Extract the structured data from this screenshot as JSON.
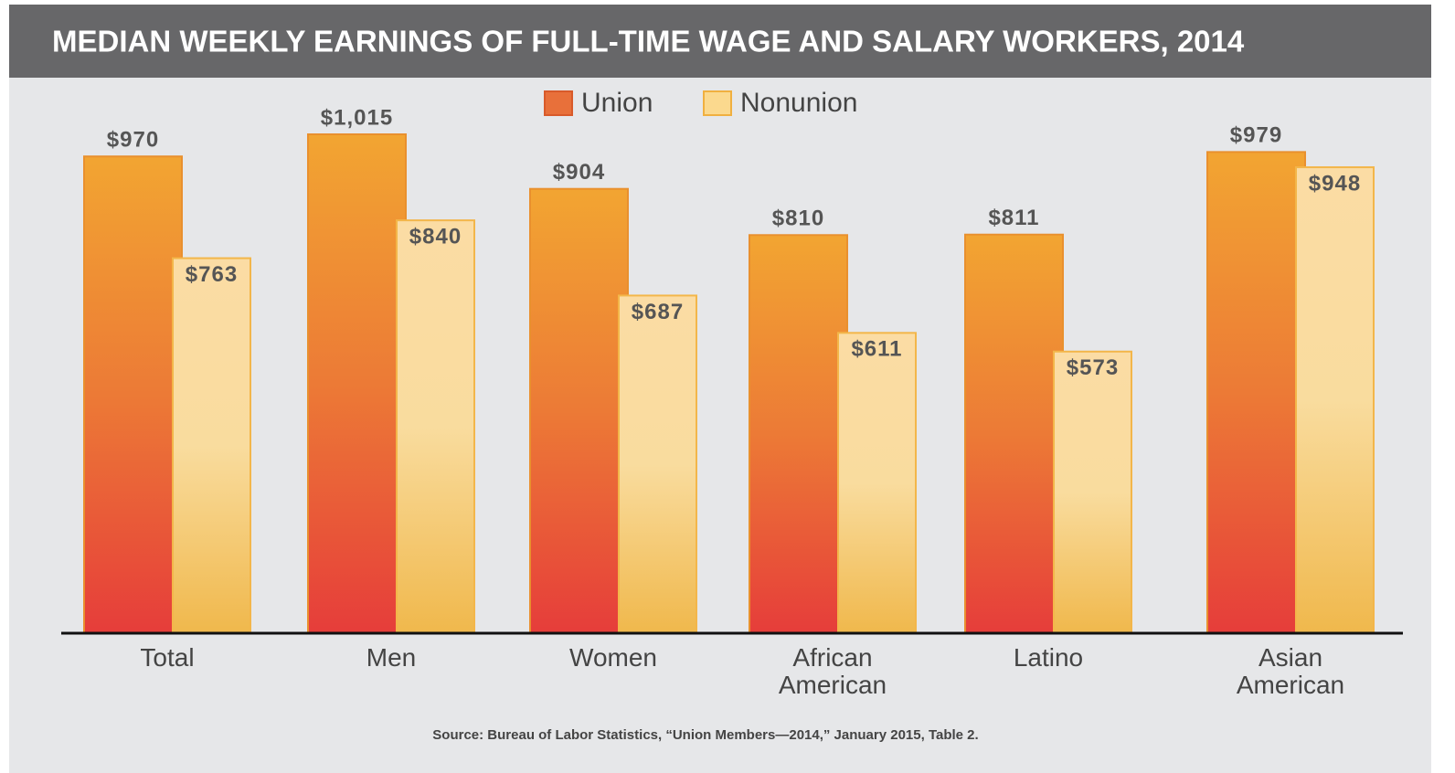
{
  "chart_data": {
    "type": "bar",
    "title": "MEDIAN WEEKLY EARNINGS OF FULL-TIME WAGE AND SALARY WORKERS, 2014",
    "categories": [
      "Total",
      "Men",
      "Women",
      "African American",
      "Latino",
      "Asian American"
    ],
    "series": [
      {
        "name": "Union",
        "color": "#e8703a",
        "values": [
          970,
          1015,
          904,
          810,
          811,
          979
        ],
        "value_labels": [
          "$970",
          "$1,015",
          "$904",
          "$810",
          "$811",
          "$979"
        ]
      },
      {
        "name": "Nonunion",
        "color": "#fbd98e",
        "values": [
          763,
          840,
          687,
          611,
          573,
          948
        ],
        "value_labels": [
          "$763",
          "$840",
          "$687",
          "$611",
          "$573",
          "$948"
        ]
      }
    ],
    "source": "Source: Bureau of Labor Statistics, “Union Members—2014,” January 2015, Table 2."
  }
}
